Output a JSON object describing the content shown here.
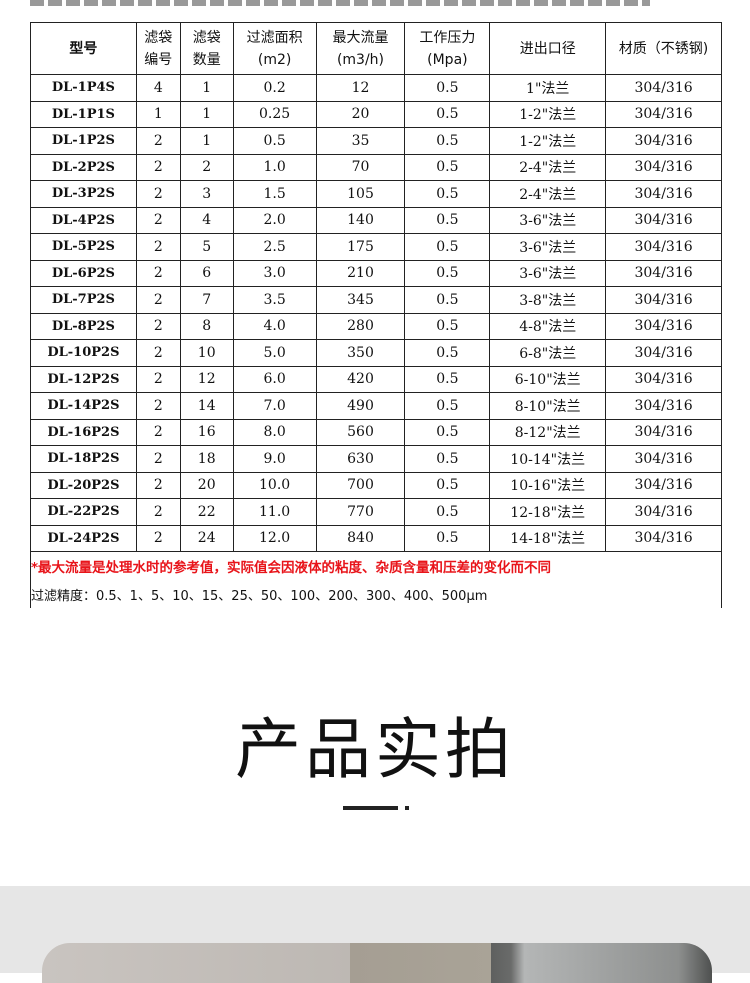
{
  "table": {
    "headers": [
      [
        "型号"
      ],
      [
        "滤袋",
        "编号"
      ],
      [
        "滤袋",
        "数量"
      ],
      [
        "过滤面积",
        "(m2)"
      ],
      [
        "最大流量",
        "(m3/h)"
      ],
      [
        "工作压力",
        "(Mpa)"
      ],
      [
        "进出口径"
      ],
      [
        "材质（不锈钢)"
      ]
    ],
    "rows": [
      [
        "DL-1P4S",
        "4",
        "1",
        "0.2",
        "12",
        "0.5",
        "1\"法兰",
        "304/316"
      ],
      [
        "DL-1P1S",
        "1",
        "1",
        "0.25",
        "20",
        "0.5",
        "1-2\"法兰",
        "304/316"
      ],
      [
        "DL-1P2S",
        "2",
        "1",
        "0.5",
        "35",
        "0.5",
        "1-2\"法兰",
        "304/316"
      ],
      [
        "DL-2P2S",
        "2",
        "2",
        "1.0",
        "70",
        "0.5",
        "2-4\"法兰",
        "304/316"
      ],
      [
        "DL-3P2S",
        "2",
        "3",
        "1.5",
        "105",
        "0.5",
        "2-4\"法兰",
        "304/316"
      ],
      [
        "DL-4P2S",
        "2",
        "4",
        "2.0",
        "140",
        "0.5",
        "3-6\"法兰",
        "304/316"
      ],
      [
        "DL-5P2S",
        "2",
        "5",
        "2.5",
        "175",
        "0.5",
        "3-6\"法兰",
        "304/316"
      ],
      [
        "DL-6P2S",
        "2",
        "6",
        "3.0",
        "210",
        "0.5",
        "3-6\"法兰",
        "304/316"
      ],
      [
        "DL-7P2S",
        "2",
        "7",
        "3.5",
        "345",
        "0.5",
        "3-8\"法兰",
        "304/316"
      ],
      [
        "DL-8P2S",
        "2",
        "8",
        "4.0",
        "280",
        "0.5",
        "4-8\"法兰",
        "304/316"
      ],
      [
        "DL-10P2S",
        "2",
        "10",
        "5.0",
        "350",
        "0.5",
        "6-8\"法兰",
        "304/316"
      ],
      [
        "DL-12P2S",
        "2",
        "12",
        "6.0",
        "420",
        "0.5",
        "6-10\"法兰",
        "304/316"
      ],
      [
        "DL-14P2S",
        "2",
        "14",
        "7.0",
        "490",
        "0.5",
        "8-10\"法兰",
        "304/316"
      ],
      [
        "DL-16P2S",
        "2",
        "16",
        "8.0",
        "560",
        "0.5",
        "8-12\"法兰",
        "304/316"
      ],
      [
        "DL-18P2S",
        "2",
        "18",
        "9.0",
        "630",
        "0.5",
        "10-14\"法兰",
        "304/316"
      ],
      [
        "DL-20P2S",
        "2",
        "20",
        "10.0",
        "700",
        "0.5",
        "10-16\"法兰",
        "304/316"
      ],
      [
        "DL-22P2S",
        "2",
        "22",
        "11.0",
        "770",
        "0.5",
        "12-18\"法兰",
        "304/316"
      ],
      [
        "DL-24P2S",
        "2",
        "24",
        "12.0",
        "840",
        "0.5",
        "14-18\"法兰",
        "304/316"
      ]
    ],
    "note": "*最大流量是处理水时的参考值，实际值会因液体的粘度、杂质含量和压差的变化而不同",
    "precision": "过滤精度：0.5、1、5、10、15、25、50、100、200、300、400、500μm"
  },
  "section": {
    "title": "产品实拍"
  },
  "colors": {
    "note": "#e8141a",
    "band": "#e6e6e6"
  }
}
